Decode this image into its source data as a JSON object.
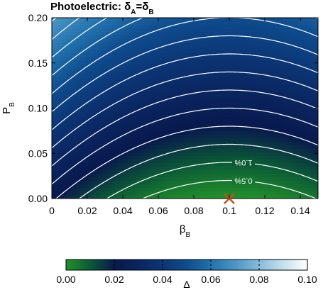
{
  "chart_data": {
    "type": "contour",
    "title": [
      "Photoelectric: δ",
      "A",
      "=δ",
      "B"
    ],
    "xlabel": [
      "β",
      "B"
    ],
    "ylabel": [
      "P",
      "B"
    ],
    "xlim": [
      0,
      0.15
    ],
    "xticks": [
      0,
      0.02,
      0.04,
      0.06,
      0.08,
      0.1,
      0.12,
      0.14
    ],
    "ylim": [
      0,
      0.2
    ],
    "yticks": [
      {
        "value": 0,
        "label": "0.00"
      },
      {
        "value": 0.05,
        "label": "0.05"
      },
      {
        "value": 0.1,
        "label": "0.10"
      },
      {
        "value": 0.15,
        "label": "0.15"
      },
      {
        "value": 0.2,
        "label": "0.20"
      }
    ],
    "contours": {
      "color": "#ffffff",
      "levels": [
        0.005,
        0.01,
        0.015,
        0.02,
        0.025,
        0.03,
        0.035,
        0.04,
        0.045,
        0.05,
        0.055,
        0.06,
        0.065,
        0.07
      ],
      "value_labels": [
        "0.5%",
        "1.0%",
        null,
        null,
        null,
        null,
        null,
        null,
        null,
        null,
        null,
        null,
        null,
        null
      ]
    },
    "minimum": {
      "x": 0.1,
      "y": 0,
      "color": "#c8501e"
    },
    "colorbar": {
      "label": "Δ",
      "clim": [
        0,
        0.1
      ],
      "cticks": [
        {
          "value": 0,
          "label": "0.00"
        },
        {
          "value": 0.02,
          "label": "0.02"
        },
        {
          "value": 0.04,
          "label": "0.04"
        },
        {
          "value": 0.06,
          "label": "0.06"
        },
        {
          "value": 0.08,
          "label": "0.08"
        },
        {
          "value": 0.1,
          "label": "0.10"
        }
      ],
      "colormap": [
        "#22912a",
        "#0b5a36",
        "#08194d",
        "#0a2560",
        "#0b3676",
        "#0e4c8e",
        "#2172ad",
        "#4c95c6",
        "#86bcdc",
        "#c5e0ee",
        "#ffffff"
      ]
    }
  }
}
